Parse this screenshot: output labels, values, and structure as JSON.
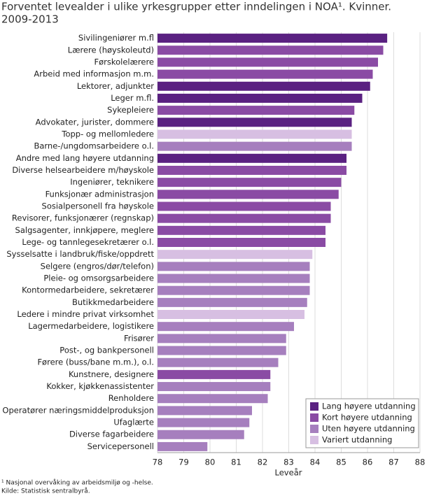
{
  "chart_data": {
    "type": "barh",
    "title": [
      "Forventet levealder i ulike yrkesgrupper etter inndelingen i NOA¹. Kvinner.",
      "2009-2013"
    ],
    "x_label": "Leveår",
    "notes": [
      "¹ Nasjonal overvåking av arbeidsmiljø og -helse.",
      "Kilde: Statistisk sentralbyrå."
    ],
    "categories": [
      "Sivilingeniører m.fl",
      "Lærere (høyskoleutd)",
      "Førskolelærere",
      "Arbeid med informasjon m.m.",
      "Lektorer, adjunkter",
      "Leger m.fl.",
      "Sykepleiere",
      "Advokater, jurister, dommere",
      "Topp- og mellomledere",
      "Barne-/ungdomsarbeidere o.l.",
      "Andre med lang høyere utdanning",
      "Diverse helsearbeidere m/høyskole",
      "Ingeniører, teknikere",
      "Funksjonær administrasjon",
      "Sosialpersonell fra høyskole",
      "Revisorer, funksjonærer (regnskap)",
      "Salgsagenter, innkjøpere, meglere",
      "Lege- og tannlegesekretærer o.l.",
      "Sysselsatte i landbruk/fiske/oppdrett",
      "Selgere (engros/dør/telefon)",
      "Pleie- og omsorgsarbeidere",
      "Kontormedarbeidere, sekretærer",
      "Butikkmedarbeidere",
      "Ledere i mindre privat virksomhet",
      "Lagermedarbeidere, logistikere",
      "Frisører",
      "Post-, og bankpersonell",
      "Førere (buss/bane m.m.), o.l.",
      "Kunstnere, designere",
      "Kokker, kjøkkenassistenter",
      "Renholdere",
      "Operatører næringsmiddelproduksjon",
      "Ufaglærte",
      "Diverse fagarbeidere",
      "Servicepersonell"
    ],
    "series": [
      {
        "name": "Lang høyere utdanning",
        "color": "#5a2181",
        "values": [
          86.75,
          null,
          null,
          null,
          86.1,
          85.8,
          null,
          85.4,
          null,
          null,
          85.2,
          null,
          null,
          null,
          null,
          null,
          null,
          null,
          null,
          null,
          null,
          null,
          null,
          null,
          null,
          null,
          null,
          null,
          null,
          null,
          null,
          null,
          null,
          null,
          null
        ]
      },
      {
        "name": "Kort høyere utdanning",
        "color": "#8a4ba4",
        "values": [
          null,
          86.6,
          86.4,
          86.2,
          null,
          null,
          85.5,
          null,
          null,
          null,
          null,
          85.2,
          85.0,
          84.9,
          84.6,
          84.6,
          84.4,
          84.4,
          null,
          null,
          null,
          null,
          null,
          null,
          null,
          null,
          null,
          null,
          82.3,
          null,
          null,
          null,
          null,
          null,
          null
        ]
      },
      {
        "name": "Uten høyere utdanning",
        "color": "#a67fbe",
        "values": [
          null,
          null,
          null,
          null,
          null,
          null,
          null,
          null,
          null,
          85.4,
          null,
          null,
          null,
          null,
          null,
          null,
          null,
          null,
          null,
          83.8,
          83.8,
          83.8,
          83.7,
          null,
          83.2,
          82.9,
          82.9,
          82.6,
          null,
          82.3,
          82.2,
          81.6,
          81.5,
          81.3,
          79.9
        ]
      },
      {
        "name": "Variert utdanning",
        "color": "#d7bfe2",
        "values": [
          null,
          null,
          null,
          null,
          null,
          null,
          null,
          null,
          85.4,
          null,
          null,
          null,
          null,
          null,
          null,
          null,
          null,
          null,
          83.9,
          null,
          null,
          null,
          null,
          83.6,
          null,
          null,
          null,
          null,
          null,
          null,
          null,
          null,
          null,
          null,
          null
        ]
      }
    ],
    "xlim": [
      78,
      88
    ],
    "xticks": [
      78,
      79,
      80,
      81,
      82,
      83,
      84,
      85,
      86,
      87,
      88
    ],
    "grid": true,
    "legend": "bottom-right"
  }
}
